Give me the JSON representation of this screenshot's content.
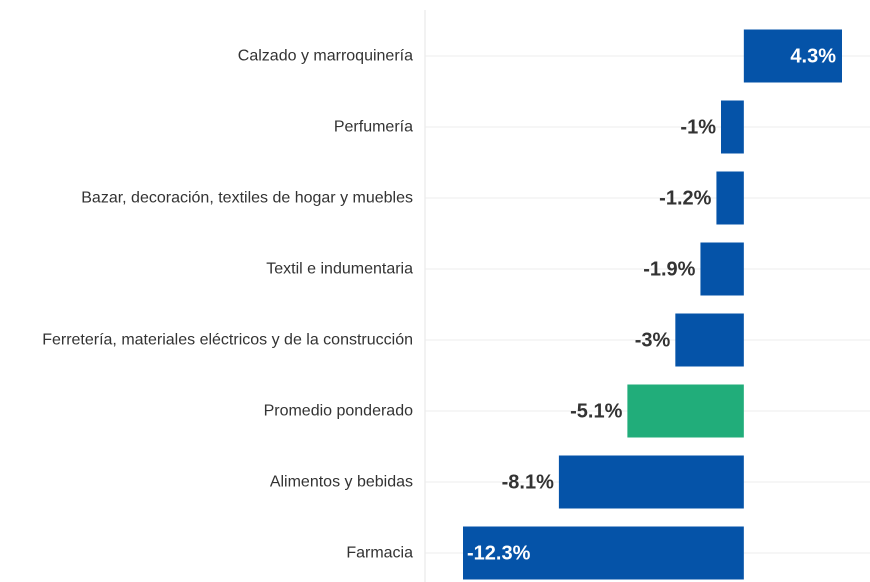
{
  "chart_data": {
    "type": "bar",
    "orientation": "horizontal",
    "categories": [
      "Calzado y marroquinería",
      "Perfumería",
      "Bazar, decoración, textiles de hogar y muebles",
      "Textil e indumentaria",
      "Ferretería, materiales eléctricos y de la construcción",
      "Promedio ponderado",
      "Alimentos y bebidas",
      "Farmacia"
    ],
    "values": [
      4.3,
      -1,
      -1.2,
      -1.9,
      -3,
      -5.1,
      -8.1,
      -12.3
    ],
    "value_labels": [
      "4.3%",
      "-1%",
      "-1.2%",
      "-1.9%",
      "-3%",
      "-5.1%",
      "-8.1%",
      "-12.3%"
    ],
    "colors": [
      "#0553a8",
      "#0553a8",
      "#0553a8",
      "#0553a8",
      "#0553a8",
      "#21ad7a",
      "#0553a8",
      "#0553a8"
    ],
    "grid": true
  }
}
